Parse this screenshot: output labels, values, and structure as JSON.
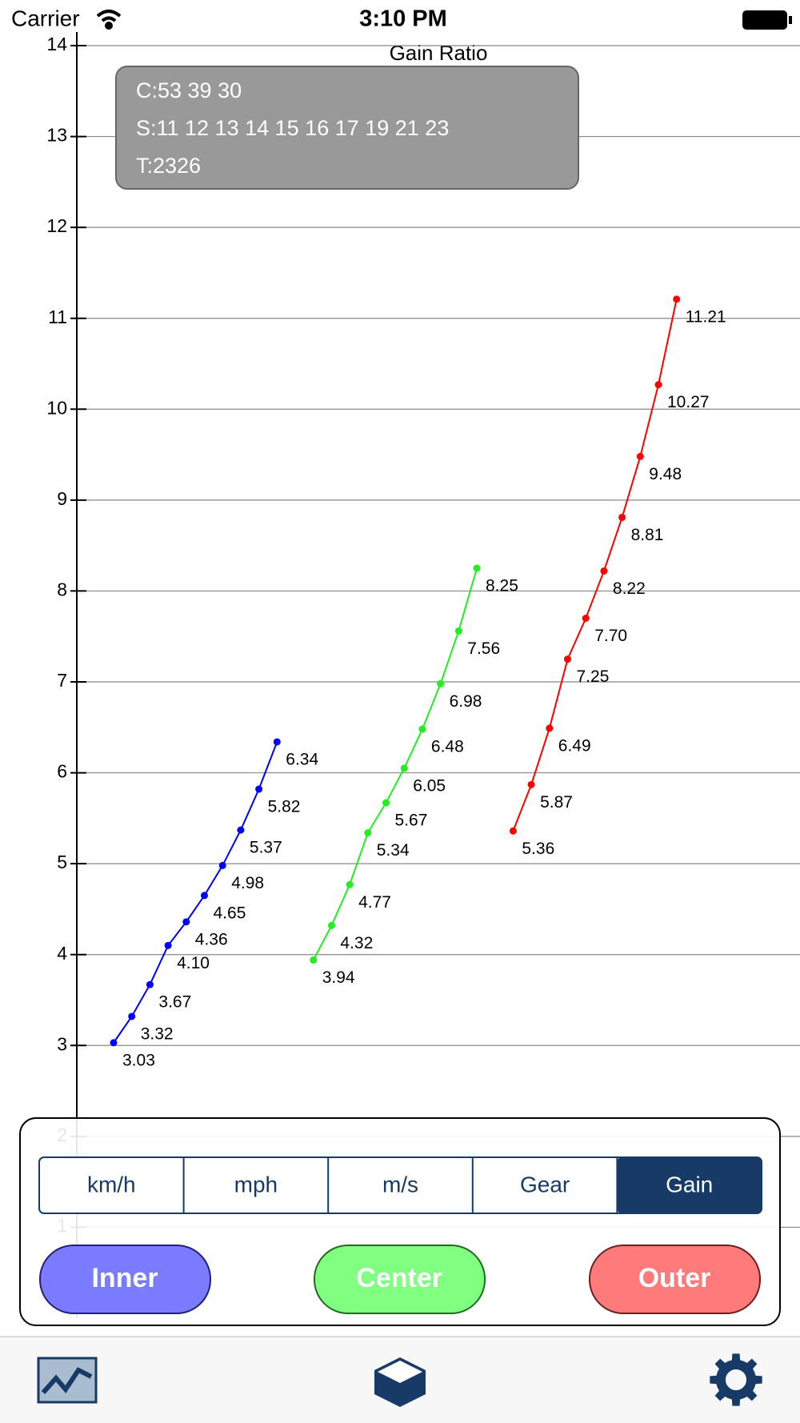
{
  "status_bar": {
    "carrier": "Carrier",
    "time": "3:10 PM"
  },
  "chart_data": {
    "type": "line",
    "title": "Gain Ratio",
    "series": [
      {
        "color": "#0000ff",
        "values": [
          3.03,
          3.32,
          3.67,
          4.1,
          4.36,
          4.65,
          4.98,
          5.37,
          5.82,
          6.34
        ],
        "value_labels": [
          "3.03",
          "3.32",
          "3.67",
          "4.10",
          "4.36",
          "4.65",
          "4.98",
          "5.37",
          "5.82",
          "6.34"
        ]
      },
      {
        "color": "#22ee22",
        "values": [
          3.94,
          4.32,
          4.77,
          5.34,
          5.67,
          6.05,
          6.48,
          6.98,
          7.56,
          8.25
        ],
        "value_labels": [
          "3.94",
          "4.32",
          "4.77",
          "5.34",
          "5.67",
          "6.05",
          "6.48",
          "6.98",
          "7.56",
          "8.25"
        ]
      },
      {
        "color": "#ff0000",
        "values": [
          5.36,
          5.87,
          6.49,
          7.25,
          7.7,
          8.22,
          8.81,
          9.48,
          10.27,
          11.21
        ],
        "value_labels": [
          "5.36",
          "5.87",
          "6.49",
          "7.25",
          "7.70",
          "8.22",
          "8.81",
          "9.48",
          "10.27",
          "11.21"
        ]
      }
    ],
    "ylim": [
      0,
      14
    ],
    "yticks": [
      1,
      2,
      3,
      4,
      5,
      6,
      7,
      8,
      9,
      10,
      11,
      12,
      13,
      14
    ],
    "grid": true
  },
  "info_box": {
    "chainrings": "C:53 39 30",
    "sprockets": "S:11 12 13 14 15 16 17 19 21 23",
    "tire": "T:2326"
  },
  "segments": {
    "items": [
      "km/h",
      "mph",
      "m/s",
      "Gear",
      "Gain"
    ],
    "selected": 4
  },
  "buttons": [
    "Inner",
    "Center",
    "Outer"
  ]
}
